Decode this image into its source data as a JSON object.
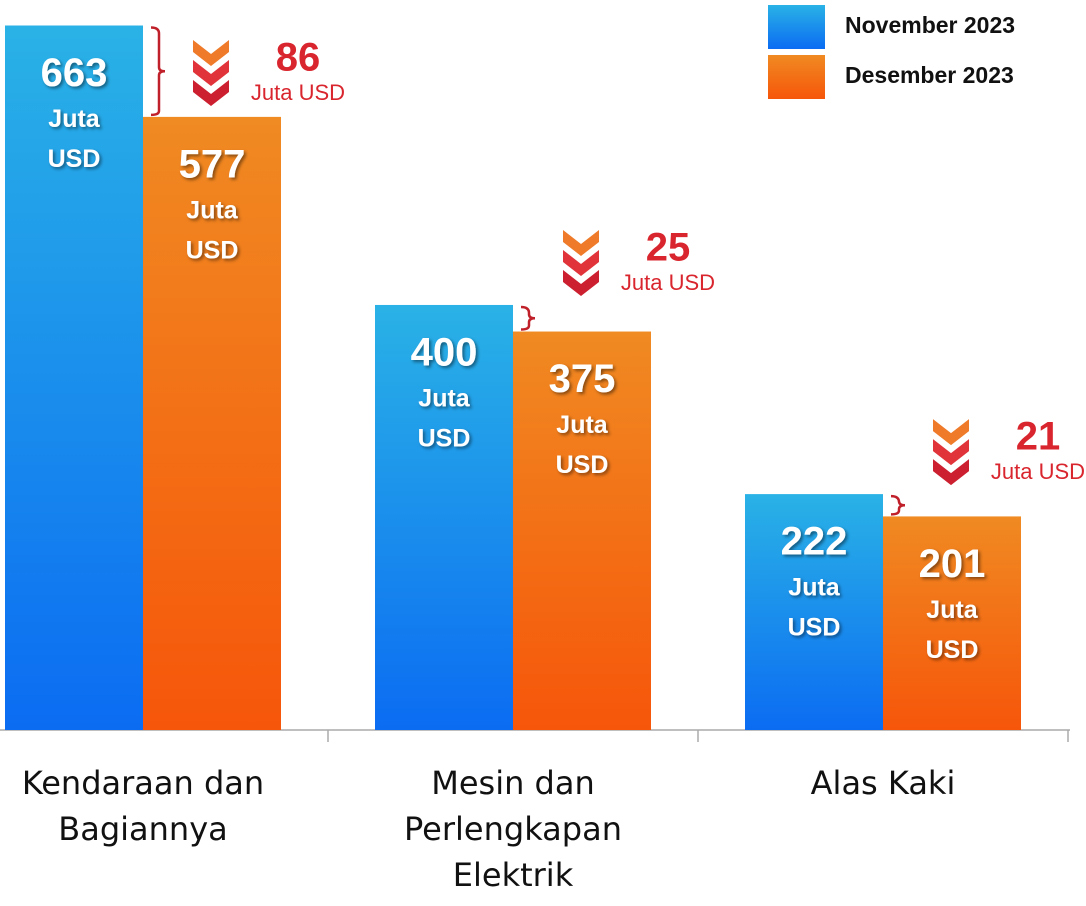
{
  "chart_data": {
    "type": "bar",
    "categories": [
      "Kendaraan dan Bagiannya",
      "Mesin dan Perlengkapan Elektrik",
      "Alas Kaki"
    ],
    "series": [
      {
        "name": "November 2023",
        "color": "#1a8ef0",
        "values": [
          663,
          400,
          222
        ]
      },
      {
        "name": "Desember 2023",
        "color": "#f27418",
        "values": [
          577,
          375,
          201
        ]
      }
    ],
    "unit_lines": [
      "Juta",
      "USD"
    ],
    "differences": [
      86,
      25,
      21
    ],
    "difference_unit": "Juta USD",
    "ylim": [
      0,
      687
    ],
    "legend": "top-right"
  }
}
